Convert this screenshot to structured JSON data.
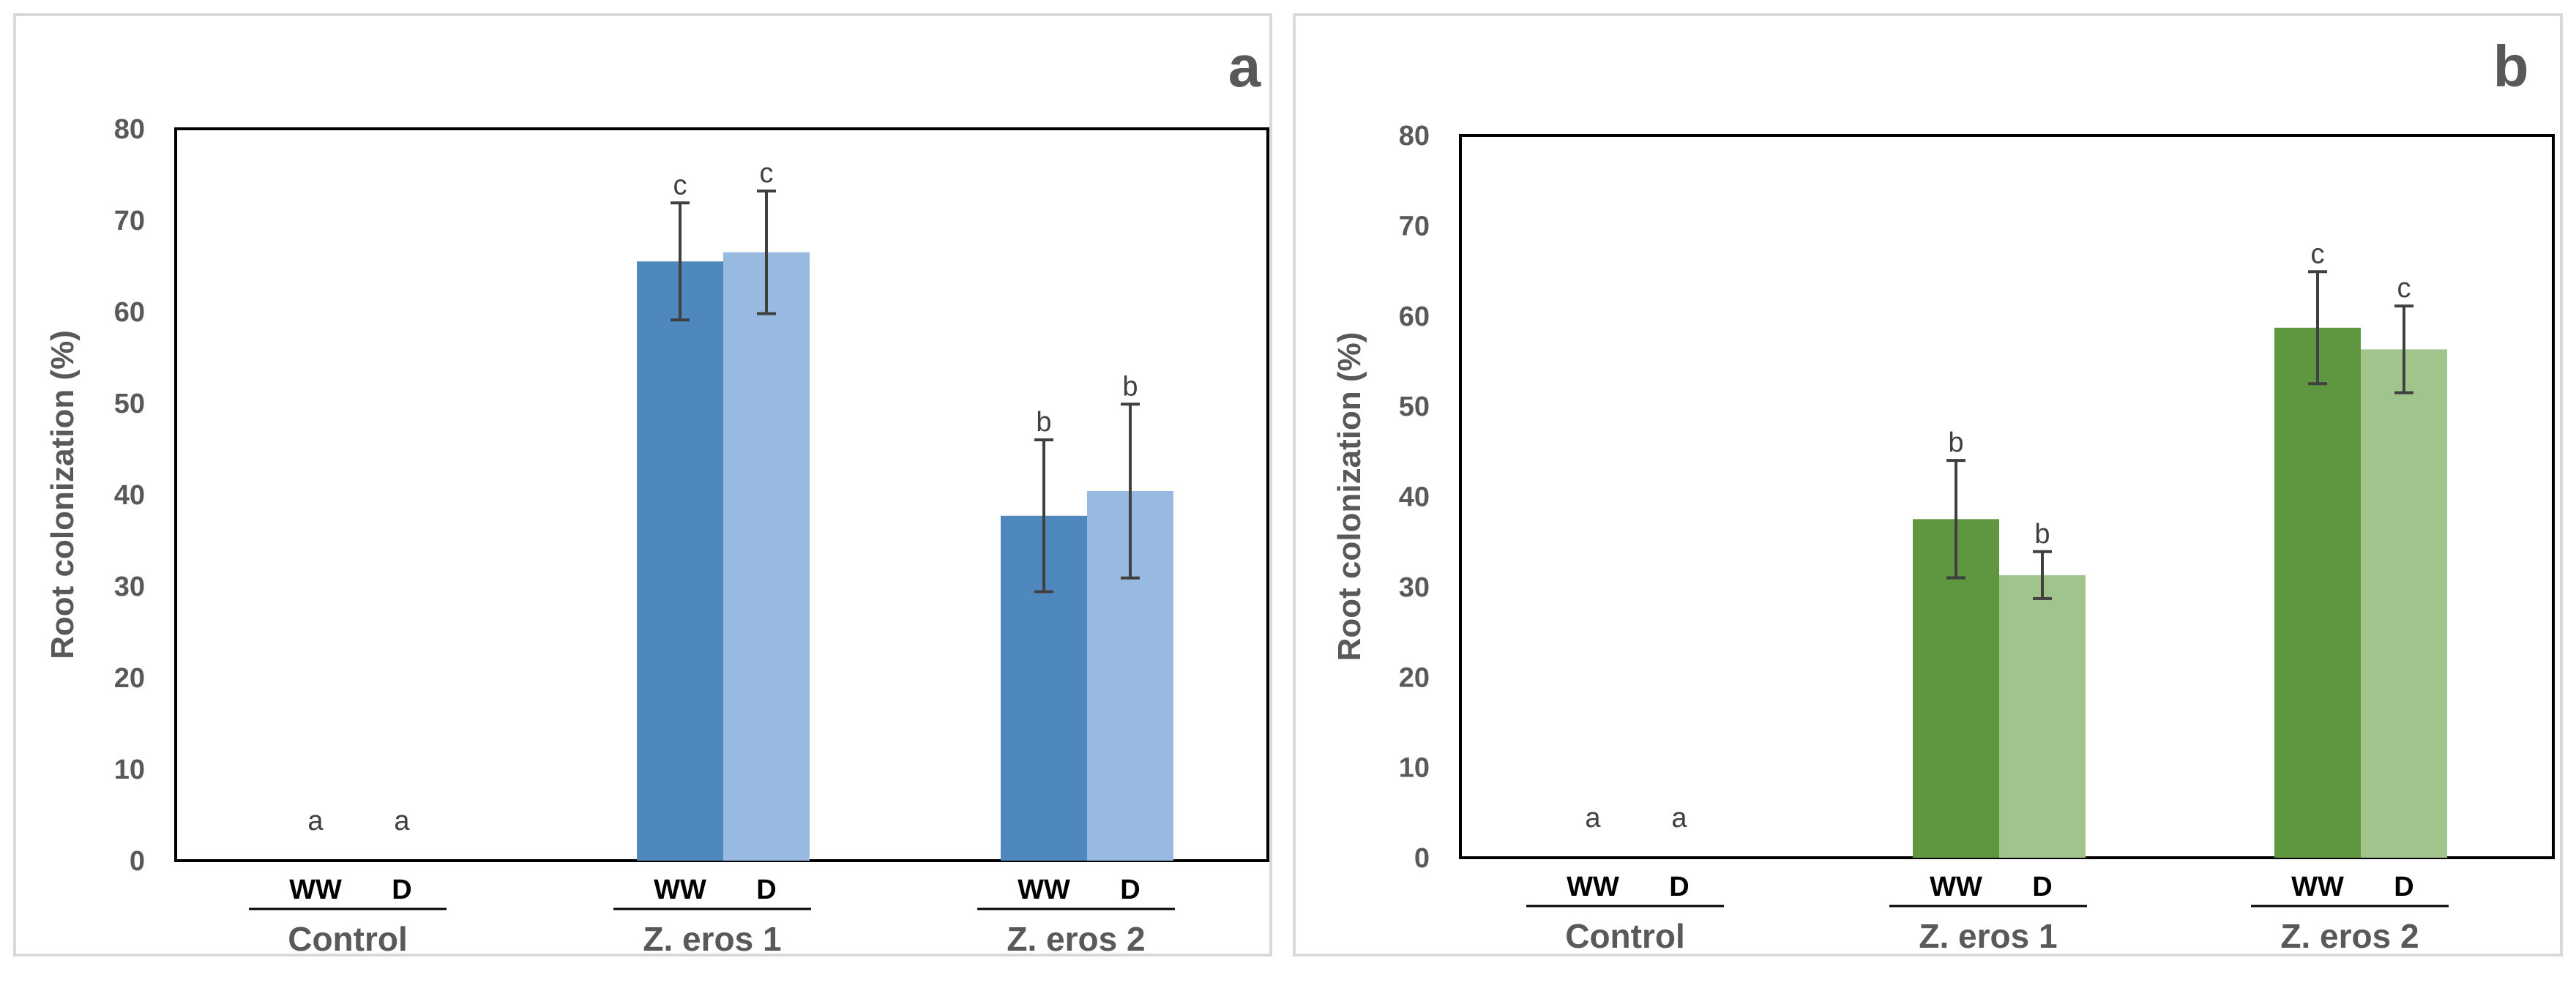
{
  "chart_data": [
    {
      "type": "bar",
      "panel_label": "a",
      "ylabel": "Root colonization (%)",
      "ylim": [
        0,
        80
      ],
      "yticks": [
        "0",
        "10",
        "20",
        "30",
        "40",
        "50",
        "60",
        "70",
        "80"
      ],
      "groups": [
        "Control",
        "Z. eros 1",
        "Z. eros 2"
      ],
      "conditions": [
        "WW",
        "D"
      ],
      "series": [
        {
          "name": "WW",
          "color": "#4f88bc",
          "values": [
            0,
            65.5,
            37.7
          ],
          "errors": [
            0,
            6.4,
            8.3
          ],
          "letters": [
            "a",
            "c",
            "b"
          ]
        },
        {
          "name": "D",
          "color": "#98b9e0",
          "values": [
            0,
            66.5,
            40.4
          ],
          "errors": [
            0,
            6.7,
            9.5
          ],
          "letters": [
            "a",
            "c",
            "b"
          ]
        }
      ]
    },
    {
      "type": "bar",
      "panel_label": "b",
      "ylabel": "Root colonization (%)",
      "ylim": [
        0,
        80
      ],
      "yticks": [
        "0",
        "10",
        "20",
        "30",
        "40",
        "50",
        "60",
        "70",
        "80"
      ],
      "groups": [
        "Control",
        "Z. eros 1",
        "Z. eros 2"
      ],
      "conditions": [
        "WW",
        "D"
      ],
      "series": [
        {
          "name": "WW",
          "color": "#5e973f",
          "values": [
            0,
            37.5,
            58.7
          ],
          "errors": [
            0,
            6.5,
            6.2
          ],
          "letters": [
            "a",
            "b",
            "c"
          ]
        },
        {
          "name": "D",
          "color": "#a0c48c",
          "values": [
            0,
            31.3,
            56.3
          ],
          "errors": [
            0,
            2.6,
            4.8
          ],
          "letters": [
            "a",
            "b",
            "c"
          ]
        }
      ]
    }
  ]
}
